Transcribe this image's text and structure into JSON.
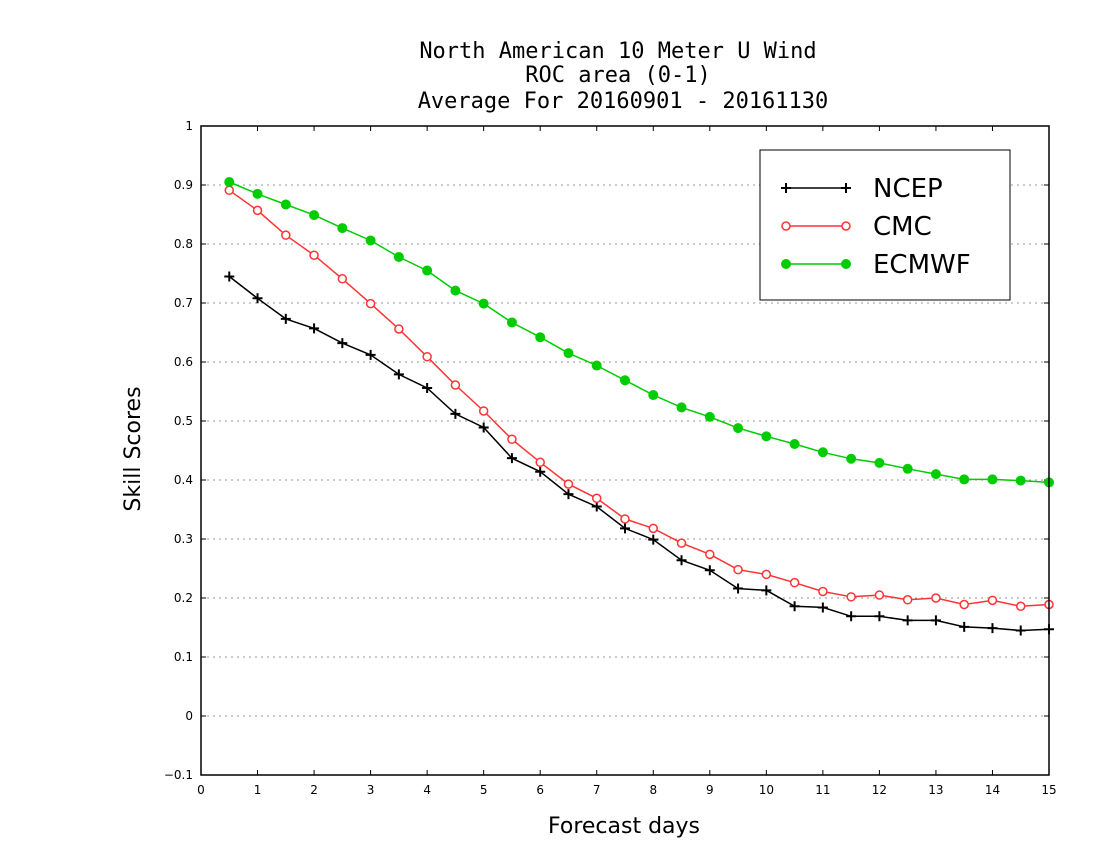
{
  "chart_data": {
    "type": "line",
    "title": [
      "North American 10 Meter U Wind",
      "ROC area (0-1)",
      "Average For 20160901 - 20161130"
    ],
    "xlabel": "Forecast days",
    "ylabel": "Skill Scores",
    "xlim": [
      0,
      15
    ],
    "ylim": [
      -0.1,
      1
    ],
    "xticks": [
      0,
      1,
      2,
      3,
      4,
      5,
      6,
      7,
      8,
      9,
      10,
      11,
      12,
      13,
      14,
      15
    ],
    "xtick_labels": [
      "0",
      "1",
      "2",
      "3",
      "4",
      "5",
      "6",
      "7",
      "8",
      "9",
      "10",
      "11",
      "12",
      "13",
      "14",
      "15"
    ],
    "yticks": [
      -0.1,
      0,
      0.1,
      0.2,
      0.3,
      0.4,
      0.5,
      0.6,
      0.7,
      0.8,
      0.9,
      1
    ],
    "ytick_labels": [
      "−0.1",
      "0",
      "0.1",
      "0.2",
      "0.3",
      "0.4",
      "0.5",
      "0.6",
      "0.7",
      "0.8",
      "0.9",
      "1"
    ],
    "grid": "horizontal dotted",
    "legend_position": "top-right",
    "x": [
      0.5,
      1,
      1.5,
      2,
      2.5,
      3,
      3.5,
      4,
      4.5,
      5,
      5.5,
      6,
      6.5,
      7,
      7.5,
      8,
      8.5,
      9,
      9.5,
      10,
      10.5,
      11,
      11.5,
      12,
      12.5,
      13,
      13.5,
      14,
      14.5,
      15
    ],
    "series": [
      {
        "name": "NCEP",
        "color": "#000000",
        "marker": "plus",
        "values": [
          0.745,
          0.708,
          0.673,
          0.657,
          0.632,
          0.612,
          0.579,
          0.556,
          0.512,
          0.489,
          0.437,
          0.414,
          0.376,
          0.355,
          0.318,
          0.299,
          0.264,
          0.247,
          0.216,
          0.213,
          0.186,
          0.184,
          0.169,
          0.169,
          0.162,
          0.162,
          0.151,
          0.149,
          0.145,
          0.147
        ]
      },
      {
        "name": "CMC",
        "color": "#ff3333",
        "marker": "open-circle",
        "values": [
          0.891,
          0.857,
          0.815,
          0.781,
          0.741,
          0.699,
          0.656,
          0.609,
          0.561,
          0.517,
          0.469,
          0.43,
          0.393,
          0.369,
          0.334,
          0.318,
          0.293,
          0.274,
          0.248,
          0.24,
          0.226,
          0.211,
          0.202,
          0.205,
          0.197,
          0.2,
          0.189,
          0.196,
          0.186,
          0.189
        ]
      },
      {
        "name": "ECMWF",
        "color": "#00cc00",
        "marker": "filled-circle",
        "values": [
          0.905,
          0.885,
          0.867,
          0.849,
          0.827,
          0.806,
          0.778,
          0.755,
          0.721,
          0.699,
          0.667,
          0.642,
          0.615,
          0.594,
          0.569,
          0.544,
          0.523,
          0.507,
          0.488,
          0.474,
          0.461,
          0.447,
          0.436,
          0.429,
          0.419,
          0.41,
          0.401,
          0.401,
          0.399,
          0.396
        ]
      }
    ]
  }
}
